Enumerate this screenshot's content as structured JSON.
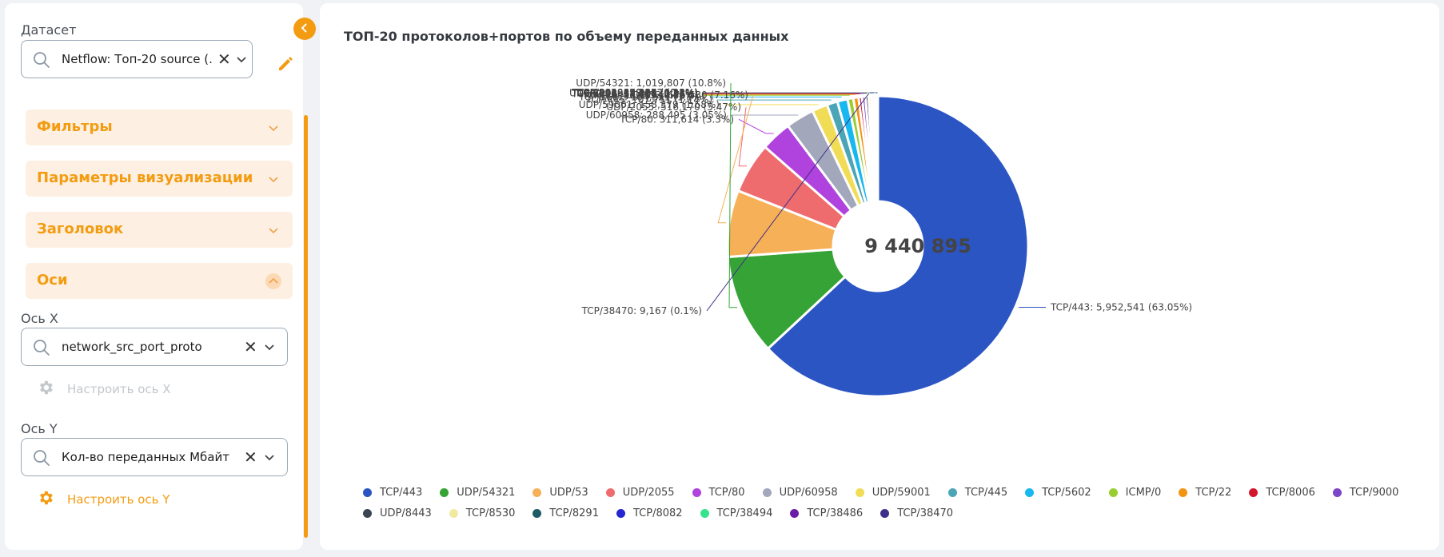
{
  "sidebar": {
    "dataset_label": "Датасет",
    "dataset_value": "Netflow: Топ-20 source (...",
    "sections": [
      {
        "title": "Фильтры",
        "open": false
      },
      {
        "title": "Параметры визуализации",
        "open": false
      },
      {
        "title": "Заголовок",
        "open": false
      },
      {
        "title": "Оси",
        "open": true
      }
    ],
    "x_axis": {
      "label": "Ось X",
      "value": "network_src_port_proto",
      "settings_label": "Настроить ось X"
    },
    "y_axis": {
      "label": "Ось Y",
      "value": "Кол-во переданных Мбайт",
      "settings_label": "Настроить ось Y"
    }
  },
  "colors": {
    "accent": "#f39c12"
  },
  "icons": [
    "chevron-left-icon",
    "search-icon",
    "close-icon",
    "chevron-down-icon",
    "pencil-icon",
    "chevron-up-icon",
    "gear-icon"
  ],
  "chart_data": {
    "type": "pie",
    "variant": "donut",
    "title": "ТОП-20 протоколов+портов по объему переданных данных",
    "center_label": "9 440 895",
    "legend_position": "bottom",
    "slices": [
      {
        "name": "TCP/443",
        "value": 5952541,
        "label": "TCP/443: 5,952,541 (63.05%)",
        "color": "#2c55c4"
      },
      {
        "name": "UDP/54321",
        "value": 1019807,
        "label": "UDP/54321: 1,019,807 (10.8%)",
        "color": "#36a336"
      },
      {
        "name": "UDP/53",
        "value": 675580,
        "label": "UDP/53: 675,580 (7.16%)",
        "color": "#f6b057"
      },
      {
        "name": "UDP/2055",
        "value": 516170,
        "label": "UDP/2055: 516,170 (5.47%)",
        "color": "#ee6b6e"
      },
      {
        "name": "TCP/80",
        "value": 311614,
        "label": "TCP/80: 311,614 (3.3%)",
        "color": "#b042dd"
      },
      {
        "name": "UDP/60958",
        "value": 288495,
        "label": "UDP/60958: 288,495 (3.05%)",
        "color": "#a3a7bb"
      },
      {
        "name": "UDP/59001",
        "value": 158379,
        "label": "UDP/59001: 158,379 (1.68%)",
        "color": "#f1dc55"
      },
      {
        "name": "TCP/445",
        "value": 107751,
        "label": "TCP/445: 107,751 (1.14%)",
        "color": "#4ba5b6"
      },
      {
        "name": "TCP/5602",
        "value": 104321,
        "label": "TCP/5602: 104,321 (1.1%)",
        "color": "#16b8ef"
      },
      {
        "name": "ICMP/0",
        "value": 58509,
        "label": "ICMP/0: 58,509 (0.62%)",
        "color": "#9acd32"
      },
      {
        "name": "TCP/22",
        "value": 52711,
        "label": "TCP/22: 52,711 (0.56%)",
        "color": "#f29312"
      },
      {
        "name": "TCP/8006",
        "value": 34908,
        "label": "TCP/8006: 34,908 (0.37%)",
        "color": "#d3172f"
      },
      {
        "name": "TCP/9000",
        "value": 34766,
        "label": "TCP/9000: 34,766 (0.37%)",
        "color": "#7d46c9"
      },
      {
        "name": "UDP/8443",
        "value": 32034,
        "label": "UDP/8443: 32,034 (0.34%)",
        "color": "#3a4453"
      },
      {
        "name": "TCP/8530",
        "value": 28287,
        "label": "TCP/8530: 28,287 (0.3%)",
        "color": "#f0eaa0"
      },
      {
        "name": "TCP/8291",
        "value": 19805,
        "label": "TCP/8291: 19,805 (0.21%)",
        "color": "#1e5b66"
      },
      {
        "name": "TCP/8082",
        "value": 17196,
        "label": "TCP/8082: 17,196 (0.18%)",
        "color": "#2525d1"
      },
      {
        "name": "TCP/38494",
        "value": 9522,
        "label": "TCP/38494: 9,522 (0.1%)",
        "color": "#35e28e"
      },
      {
        "name": "TCP/38486",
        "value": 9332,
        "label": "TCP/38486: 9,332 (0.1%)",
        "color": "#6b1ea5"
      },
      {
        "name": "TCP/38470",
        "value": 9167,
        "label": "TCP/38470: 9,167 (0.1%)",
        "color": "#3f2e8a"
      }
    ]
  }
}
